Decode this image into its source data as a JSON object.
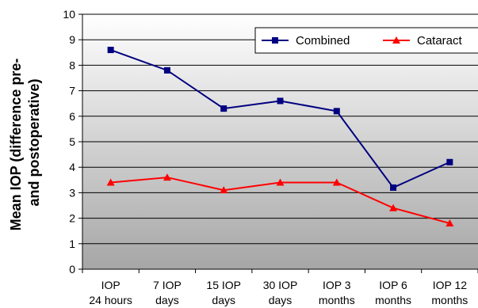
{
  "chart_data": {
    "type": "line",
    "ylabel_lines": [
      "Mean IOP (difference pre-",
      "and postoperative)"
    ],
    "xlabel": "",
    "ylim": [
      0,
      10
    ],
    "yticks": [
      0,
      1,
      2,
      3,
      4,
      5,
      6,
      7,
      8,
      9,
      10
    ],
    "grid": true,
    "legend_position": "top-right",
    "categories": [
      [
        "IOP",
        "24 hours"
      ],
      [
        "7 IOP",
        "days"
      ],
      [
        "15 IOP",
        "days"
      ],
      [
        "30 IOP",
        "days"
      ],
      [
        "IOP 3",
        "months"
      ],
      [
        "IOP 6",
        "months"
      ],
      [
        "IOP 12",
        "months"
      ]
    ],
    "series": [
      {
        "name": "Combined",
        "color": "#000080",
        "marker": "square",
        "values": [
          8.6,
          7.8,
          6.3,
          6.6,
          6.2,
          3.2,
          4.2
        ]
      },
      {
        "name": "Cataract",
        "color": "#ff0000",
        "marker": "triangle",
        "values": [
          3.4,
          3.6,
          3.1,
          3.4,
          3.4,
          2.4,
          1.8
        ]
      }
    ]
  }
}
